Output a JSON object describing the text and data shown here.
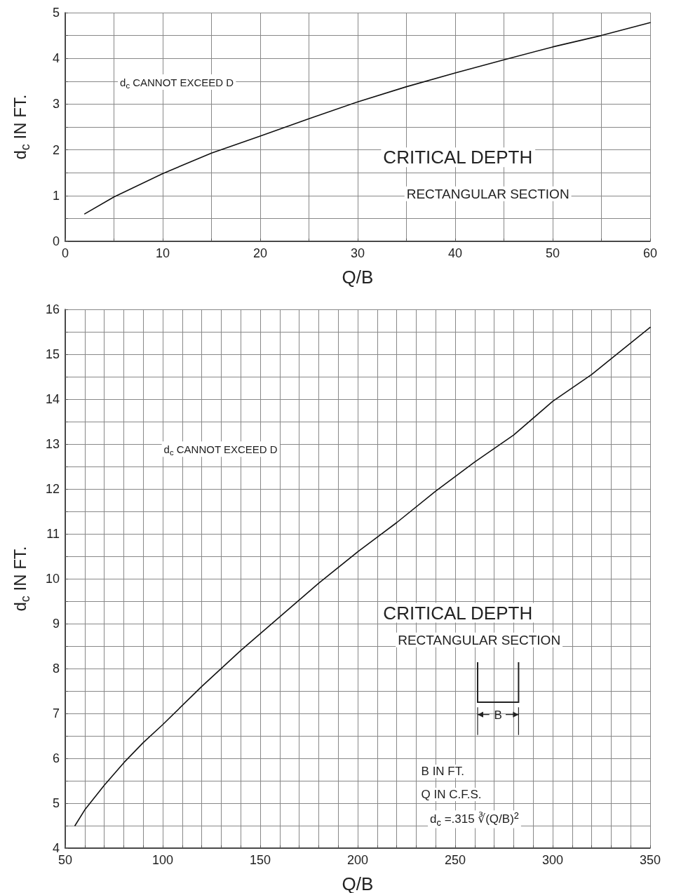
{
  "chart_data": [
    {
      "type": "line",
      "xlabel": "Q/B",
      "ylabel": "d$_{c}$ IN FT.",
      "annotations": [
        "d$_{c}$ CANNOT EXCEED D",
        "CRITICAL DEPTH",
        "RECTANGULAR SECTION"
      ],
      "x": [
        2,
        5,
        10,
        15,
        20,
        25,
        30,
        35,
        40,
        45,
        50,
        55,
        60
      ],
      "series": [
        {
          "color": "#111111",
          "values": [
            0.6,
            0.97,
            1.48,
            1.93,
            2.3,
            2.68,
            3.05,
            3.38,
            3.68,
            3.97,
            4.25,
            4.5,
            4.78
          ]
        }
      ],
      "xlim": [
        0,
        60
      ],
      "xticks": [
        0,
        {
          "value": 5,
          "label": null
        },
        10,
        {
          "value": 15,
          "label": null
        },
        20,
        {
          "value": 25,
          "label": null
        },
        30,
        {
          "value": 35,
          "label": null
        },
        40,
        {
          "value": 45,
          "label": null
        },
        50,
        {
          "value": 55,
          "label": null
        },
        60
      ],
      "ylim": [
        0,
        5
      ],
      "yticks": [
        0,
        {
          "value": 0.5,
          "label": null
        },
        1,
        {
          "value": 1.5,
          "label": null
        },
        2,
        {
          "value": 2.5,
          "label": null
        },
        3,
        {
          "value": 3.5,
          "label": null
        },
        4,
        {
          "value": 4.5,
          "label": null
        },
        5
      ],
      "grid": true,
      "marker": "none",
      "line_style": "solid"
    },
    {
      "type": "line",
      "xlabel": "Q/B",
      "ylabel": "d$_{c}$ IN FT.",
      "annotations": [
        "d$_{c}$ CANNOT EXCEED D",
        "CRITICAL DEPTH",
        "RECTANGULAR SECTION",
        "B IN FT.",
        "Q IN C.F.S.",
        "d$_{c}$ =.315 ∛(Q/B)$^{2}$",
        "B"
      ],
      "x": [
        55,
        60,
        70,
        80,
        90,
        100,
        120,
        140,
        160,
        180,
        200,
        220,
        240,
        260,
        280,
        300,
        320,
        350
      ],
      "series": [
        {
          "color": "#111111",
          "values": [
            4.5,
            4.85,
            5.4,
            5.9,
            6.35,
            6.75,
            7.6,
            8.4,
            9.15,
            9.9,
            10.6,
            11.25,
            11.95,
            12.6,
            13.2,
            13.95,
            14.55,
            15.6
          ]
        }
      ],
      "xlim": [
        50,
        350
      ],
      "xticks": [
        50,
        {
          "value": 60,
          "label": null
        },
        {
          "value": 70,
          "label": null
        },
        {
          "value": 80,
          "label": null
        },
        {
          "value": 90,
          "label": null
        },
        100,
        {
          "value": 110,
          "label": null
        },
        {
          "value": 120,
          "label": null
        },
        {
          "value": 130,
          "label": null
        },
        {
          "value": 140,
          "label": null
        },
        150,
        {
          "value": 160,
          "label": null
        },
        {
          "value": 170,
          "label": null
        },
        {
          "value": 180,
          "label": null
        },
        {
          "value": 190,
          "label": null
        },
        200,
        {
          "value": 210,
          "label": null
        },
        {
          "value": 220,
          "label": null
        },
        {
          "value": 230,
          "label": null
        },
        {
          "value": 240,
          "label": null
        },
        250,
        {
          "value": 260,
          "label": null
        },
        {
          "value": 270,
          "label": null
        },
        {
          "value": 280,
          "label": null
        },
        {
          "value": 290,
          "label": null
        },
        300,
        {
          "value": 310,
          "label": null
        },
        {
          "value": 320,
          "label": null
        },
        {
          "value": 330,
          "label": null
        },
        {
          "value": 340,
          "label": null
        },
        350
      ],
      "ylim": [
        4,
        16
      ],
      "yticks": [
        4,
        {
          "value": 4.5,
          "label": null
        },
        5,
        {
          "value": 5.5,
          "label": null
        },
        6,
        {
          "value": 6.5,
          "label": null
        },
        7,
        {
          "value": 7.5,
          "label": null
        },
        8,
        {
          "value": 8.5,
          "label": null
        },
        9,
        {
          "value": 9.5,
          "label": null
        },
        10,
        {
          "value": 10.5,
          "label": null
        },
        11,
        {
          "value": 11.5,
          "label": null
        },
        12,
        {
          "value": 12.5,
          "label": null
        },
        13,
        {
          "value": 13.5,
          "label": null
        },
        14,
        {
          "value": 14.5,
          "label": null
        },
        15,
        {
          "value": 15.5,
          "label": null
        },
        16
      ],
      "grid": true,
      "marker": "none",
      "line_style": "solid"
    }
  ]
}
